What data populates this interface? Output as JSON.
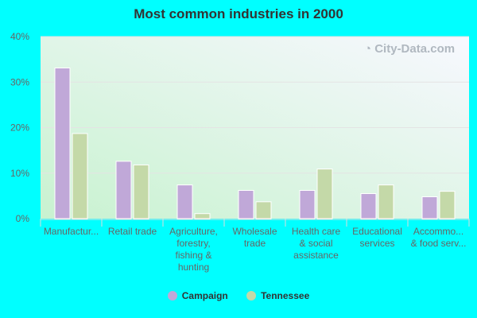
{
  "chart_data": {
    "type": "bar",
    "title": "Most common industries in 2000",
    "categories": [
      [
        "Manufactur..."
      ],
      [
        "Retail trade"
      ],
      [
        "Agriculture,",
        "forestry,",
        "fishing &",
        "hunting"
      ],
      [
        "Wholesale",
        "trade"
      ],
      [
        "Health care",
        "& social",
        "assistance"
      ],
      [
        "Educational",
        "services"
      ],
      [
        "Accommo...",
        "& food serv..."
      ]
    ],
    "series": [
      {
        "name": "Campaign",
        "color": "#c0a8d8",
        "values": [
          33.1,
          12.6,
          7.4,
          6.2,
          6.2,
          5.5,
          4.8
        ]
      },
      {
        "name": "Tennessee",
        "color": "#c4d9a8",
        "values": [
          18.7,
          11.8,
          1.1,
          3.7,
          10.9,
          7.4,
          6.0
        ]
      }
    ],
    "ylim": [
      0,
      40
    ],
    "yticks": [
      "0%",
      "10%",
      "20%",
      "30%",
      "40%"
    ],
    "grid": true,
    "legend": "bottom",
    "watermark": "City-Data.com"
  }
}
